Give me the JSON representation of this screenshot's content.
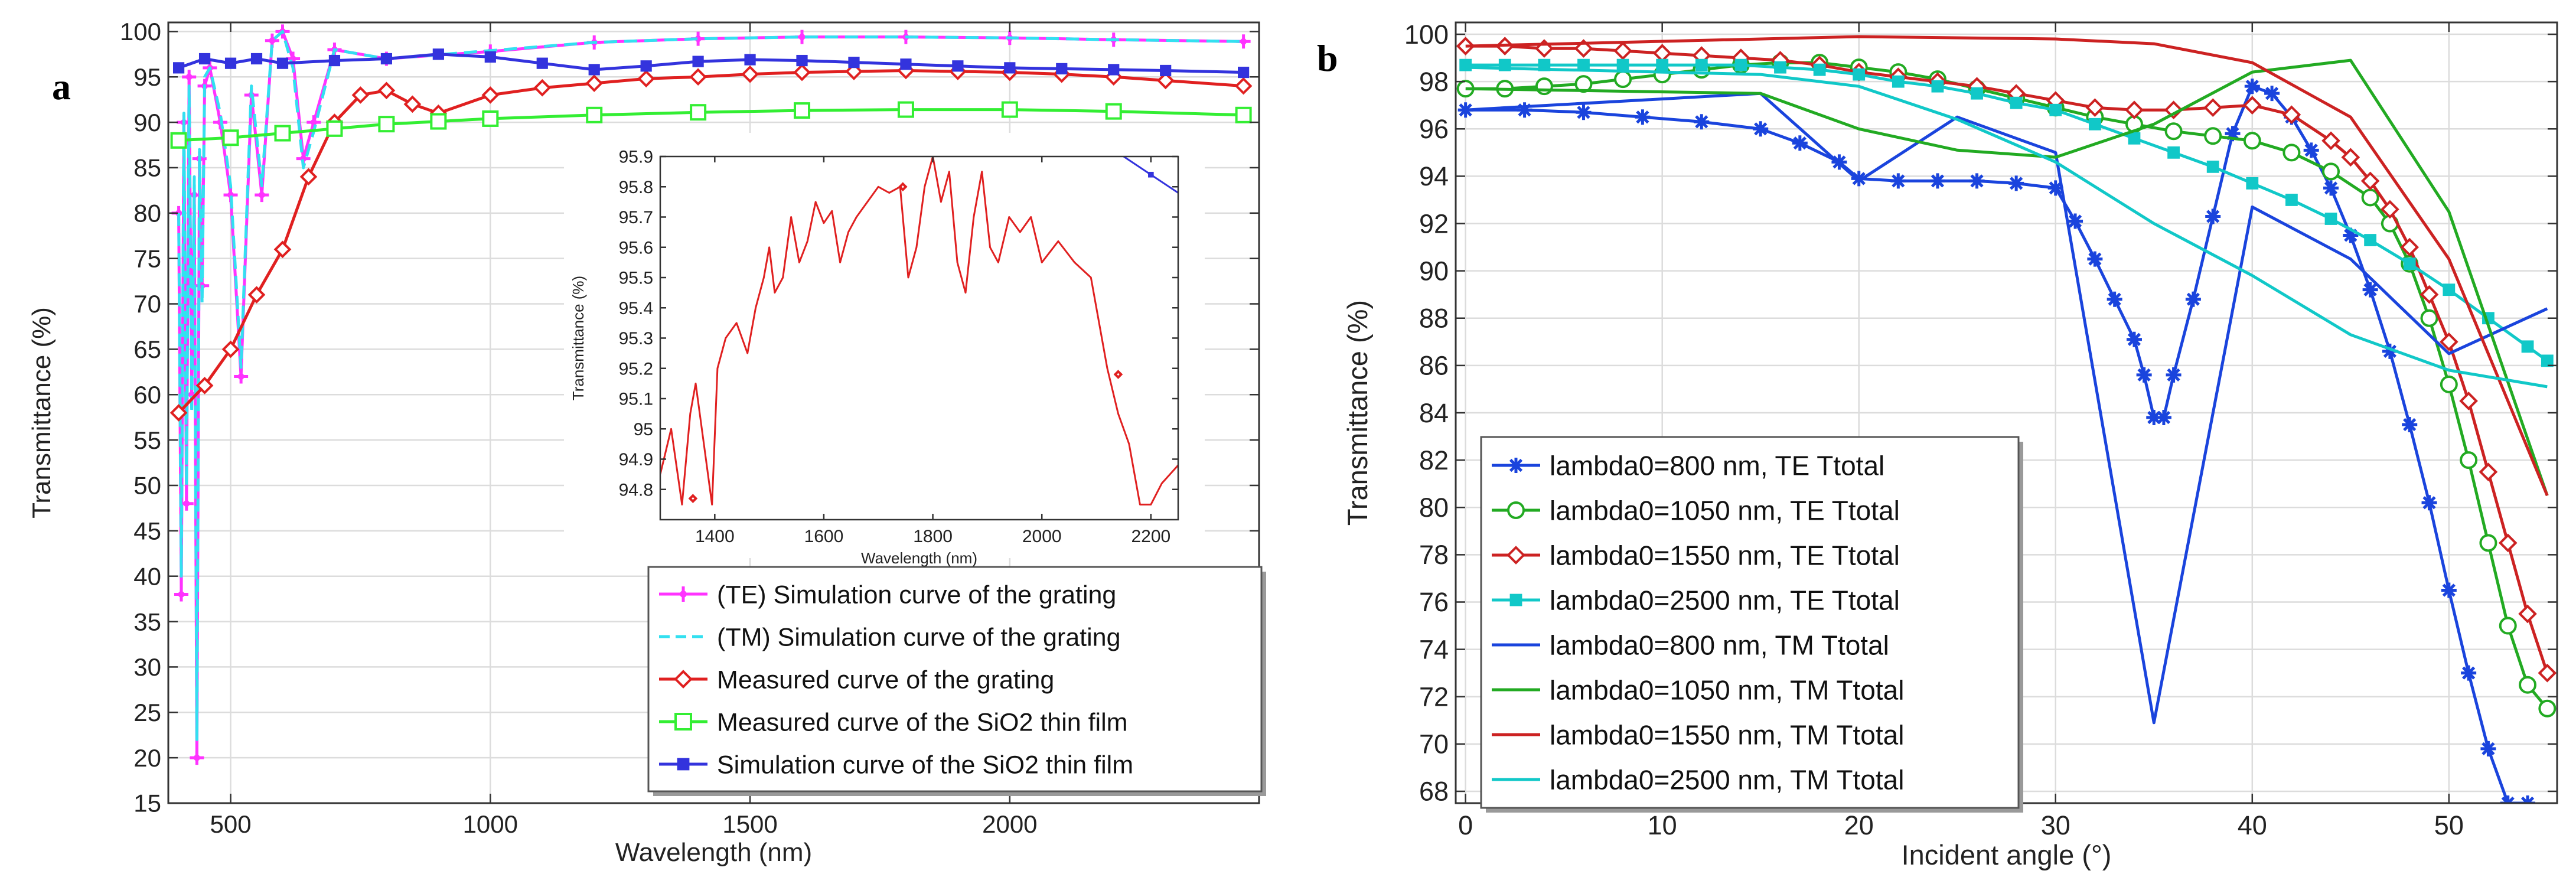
{
  "chart_data": [
    {
      "panel": "a",
      "type": "line",
      "xlabel": "Wavelength (nm)",
      "ylabel": "Transmittance (%)",
      "xlim": [
        380,
        2480
      ],
      "ylim": [
        15,
        101
      ],
      "xticks": [
        500,
        1000,
        1500,
        2000
      ],
      "yticks": [
        15,
        20,
        25,
        30,
        35,
        40,
        45,
        50,
        55,
        60,
        65,
        70,
        75,
        80,
        85,
        90,
        95,
        100
      ],
      "grid": true,
      "legend_position": "bottom-right",
      "series": [
        {
          "name": "(TE) Simulation curve of the grating",
          "color": "#ff33ff",
          "marker": "plus",
          "x": [
            400,
            405,
            410,
            415,
            420,
            425,
            430,
            435,
            440,
            445,
            450,
            460,
            480,
            500,
            520,
            540,
            560,
            580,
            600,
            620,
            640,
            660,
            700,
            800,
            1000,
            1200,
            1400,
            1600,
            1800,
            2000,
            2200,
            2450
          ],
          "y": [
            80,
            38,
            90,
            48,
            95,
            60,
            82,
            20,
            86,
            72,
            94,
            96,
            90,
            82,
            62,
            93,
            82,
            99,
            100,
            97,
            86,
            90,
            98,
            97,
            97.8,
            98.8,
            99.2,
            99.4,
            99.4,
            99.3,
            99.1,
            98.9
          ]
        },
        {
          "name": "(TM) Simulation curve of the grating",
          "color": "#33e0f0",
          "marker": "none",
          "x": [
            400,
            405,
            410,
            415,
            420,
            425,
            430,
            435,
            440,
            445,
            450,
            460,
            480,
            500,
            520,
            540,
            560,
            580,
            600,
            620,
            640,
            660,
            700,
            800,
            1000,
            1200,
            1400,
            1600,
            1800,
            2000,
            2200,
            2450
          ],
          "y": [
            80,
            40,
            91,
            50,
            94,
            58,
            84,
            22,
            87,
            70,
            95,
            96,
            91,
            83,
            63,
            94,
            83,
            99,
            100,
            96,
            85,
            89,
            98,
            97,
            97.9,
            98.8,
            99.2,
            99.4,
            99.4,
            99.3,
            99.1,
            98.9
          ]
        },
        {
          "name": "Measured curve of the grating",
          "color": "#e02020",
          "marker": "diamond",
          "x": [
            400,
            450,
            500,
            550,
            600,
            650,
            700,
            750,
            800,
            850,
            900,
            1000,
            1100,
            1200,
            1300,
            1400,
            1500,
            1600,
            1700,
            1800,
            1900,
            2000,
            2100,
            2200,
            2300,
            2450
          ],
          "y": [
            58,
            61,
            65,
            71,
            76,
            84,
            90,
            93,
            93.5,
            92,
            91,
            93,
            93.8,
            94.3,
            94.8,
            95,
            95.3,
            95.5,
            95.6,
            95.7,
            95.6,
            95.5,
            95.3,
            95,
            94.6,
            94
          ]
        },
        {
          "name": "Measured curve of the SiO2 thin film",
          "color": "#33ee33",
          "marker": "square",
          "x": [
            400,
            500,
            600,
            700,
            800,
            900,
            1000,
            1200,
            1400,
            1600,
            1800,
            2000,
            2200,
            2450
          ],
          "y": [
            88,
            88.3,
            88.8,
            89.3,
            89.8,
            90.1,
            90.4,
            90.8,
            91.1,
            91.3,
            91.4,
            91.4,
            91.2,
            90.8
          ]
        },
        {
          "name": "Simulation curve of the SiO2 thin film",
          "color": "#3333dd",
          "marker": "filled-square",
          "x": [
            400,
            450,
            500,
            550,
            600,
            700,
            800,
            900,
            1000,
            1100,
            1200,
            1300,
            1400,
            1500,
            1600,
            1700,
            1800,
            1900,
            2000,
            2100,
            2200,
            2300,
            2450
          ],
          "y": [
            96,
            97,
            96.5,
            97,
            96.5,
            96.8,
            97,
            97.5,
            97.2,
            96.5,
            95.8,
            96.2,
            96.7,
            96.9,
            96.8,
            96.6,
            96.4,
            96.2,
            96,
            95.9,
            95.8,
            95.7,
            95.5
          ]
        }
      ]
    },
    {
      "panel": "a-inset",
      "type": "line",
      "xlabel": "Wavelength (nm)",
      "ylabel": "Transmittance (%)",
      "xlim": [
        1300,
        2250
      ],
      "ylim": [
        94.7,
        95.9
      ],
      "xticks": [
        1400,
        1600,
        1800,
        2000,
        2200
      ],
      "yticks": [
        94.8,
        94.9,
        95,
        95.1,
        95.2,
        95.3,
        95.4,
        95.5,
        95.6,
        95.7,
        95.8,
        95.9
      ],
      "ytick_labels": [
        "94.8",
        "94.9",
        "95",
        "95.1",
        "95.2",
        "95.3",
        "95.4",
        "95.5",
        "95.6",
        "95.7",
        "95.8",
        "95.9"
      ],
      "series": [
        {
          "name": "Measured curve of the grating (zoom)",
          "color": "#e02020",
          "x": [
            1300,
            1320,
            1340,
            1355,
            1365,
            1380,
            1395,
            1405,
            1420,
            1440,
            1460,
            1475,
            1490,
            1500,
            1510,
            1525,
            1540,
            1555,
            1570,
            1585,
            1600,
            1615,
            1630,
            1645,
            1660,
            1680,
            1700,
            1720,
            1740,
            1755,
            1770,
            1785,
            1800,
            1815,
            1830,
            1845,
            1860,
            1875,
            1890,
            1905,
            1920,
            1940,
            1960,
            1980,
            2000,
            2030,
            2060,
            2090,
            2120,
            2140,
            2160,
            2180,
            2200,
            2220,
            2250
          ],
          "y": [
            94.85,
            95.0,
            94.75,
            95.05,
            95.15,
            94.95,
            94.75,
            95.2,
            95.3,
            95.35,
            95.25,
            95.4,
            95.5,
            95.6,
            95.45,
            95.5,
            95.7,
            95.55,
            95.62,
            95.75,
            95.68,
            95.72,
            95.55,
            95.65,
            95.7,
            95.75,
            95.8,
            95.78,
            95.8,
            95.5,
            95.6,
            95.8,
            95.9,
            95.75,
            95.85,
            95.55,
            95.45,
            95.7,
            95.85,
            95.6,
            95.55,
            95.7,
            95.65,
            95.7,
            95.55,
            95.62,
            95.55,
            95.5,
            95.2,
            95.05,
            94.95,
            94.75,
            94.75,
            94.82,
            94.88
          ]
        },
        {
          "name": "Simulation curve of the SiO2 thin film (zoom)",
          "color": "#3333dd",
          "x": [
            2150,
            2200,
            2250
          ],
          "y": [
            95.9,
            95.84,
            95.78
          ]
        }
      ]
    },
    {
      "panel": "b",
      "type": "line",
      "xlabel": "Incident angle (°)",
      "ylabel": "Transmittance (%)",
      "xlim": [
        -0.5,
        55.5
      ],
      "ylim": [
        67.5,
        100.5
      ],
      "xticks": [
        0,
        10,
        20,
        30,
        40,
        50
      ],
      "yticks": [
        68,
        70,
        72,
        74,
        76,
        78,
        80,
        82,
        84,
        86,
        88,
        90,
        92,
        94,
        96,
        98,
        100
      ],
      "grid": true,
      "legend_position": "bottom-left",
      "series": [
        {
          "name": "lambda0=800 nm, TE Ttotal",
          "color": "#1a44dd",
          "marker": "star",
          "x": [
            0,
            3,
            6,
            9,
            12,
            15,
            17,
            19,
            20,
            22,
            24,
            26,
            28,
            30,
            31,
            32,
            33,
            34,
            34.5,
            35,
            35.5,
            36,
            37,
            38,
            39,
            40,
            41,
            42,
            43,
            44,
            45,
            46,
            47,
            48,
            49,
            50,
            51,
            52,
            53,
            54
          ],
          "y": [
            96.8,
            96.8,
            96.7,
            96.5,
            96.3,
            96,
            95.4,
            94.6,
            93.9,
            93.8,
            93.8,
            93.8,
            93.7,
            93.5,
            92.1,
            90.5,
            88.8,
            87.1,
            85.6,
            83.8,
            83.8,
            85.6,
            88.8,
            92.3,
            95.8,
            97.8,
            97.5,
            96.5,
            95.1,
            93.5,
            91.5,
            89.2,
            86.6,
            83.5,
            80.2,
            76.5,
            73,
            69.8,
            67.5,
            67.5
          ]
        },
        {
          "name": "lambda0=1050 nm, TE Ttotal",
          "color": "#22aa22",
          "marker": "circle",
          "x": [
            0,
            2,
            4,
            6,
            8,
            10,
            12,
            14,
            16,
            18,
            20,
            22,
            24,
            26,
            28,
            30,
            32,
            34,
            36,
            38,
            40,
            42,
            44,
            46,
            47,
            48,
            49,
            50,
            51,
            52,
            53,
            54,
            55
          ],
          "y": [
            97.7,
            97.7,
            97.8,
            97.9,
            98.1,
            98.3,
            98.5,
            98.7,
            98.8,
            98.8,
            98.6,
            98.4,
            98.1,
            97.7,
            97.3,
            96.9,
            96.5,
            96.2,
            95.9,
            95.7,
            95.5,
            95,
            94.2,
            93.1,
            92,
            90.3,
            88,
            85.2,
            82,
            78.5,
            75,
            72.5,
            71.5
          ]
        },
        {
          "name": "lambda0=1550 nm, TE Ttotal",
          "color": "#cc2222",
          "marker": "diamond",
          "x": [
            0,
            2,
            4,
            6,
            8,
            10,
            12,
            14,
            16,
            18,
            20,
            22,
            24,
            26,
            28,
            30,
            32,
            34,
            36,
            38,
            40,
            42,
            44,
            45,
            46,
            47,
            48,
            49,
            50,
            51,
            52,
            53,
            54,
            55
          ],
          "y": [
            99.5,
            99.5,
            99.4,
            99.4,
            99.3,
            99.2,
            99.1,
            99,
            98.9,
            98.7,
            98.4,
            98.2,
            98,
            97.8,
            97.5,
            97.2,
            96.9,
            96.8,
            96.8,
            96.9,
            97,
            96.6,
            95.5,
            94.8,
            93.8,
            92.6,
            91,
            89,
            87,
            84.5,
            81.5,
            78.5,
            75.5,
            73
          ]
        },
        {
          "name": "lambda0=2500 nm, TE Ttotal",
          "color": "#11c8c8",
          "marker": "filled-square",
          "x": [
            0,
            2,
            4,
            6,
            8,
            10,
            12,
            14,
            16,
            18,
            20,
            22,
            24,
            26,
            28,
            30,
            32,
            34,
            36,
            38,
            40,
            42,
            44,
            46,
            48,
            50,
            52,
            54,
            55
          ],
          "y": [
            98.7,
            98.7,
            98.7,
            98.7,
            98.7,
            98.7,
            98.7,
            98.7,
            98.6,
            98.5,
            98.3,
            98,
            97.8,
            97.5,
            97.1,
            96.8,
            96.2,
            95.6,
            95,
            94.4,
            93.7,
            93,
            92.2,
            91.3,
            90.3,
            89.2,
            88,
            86.8,
            86.2
          ]
        },
        {
          "name": "lambda0=800 nm, TM Ttotal",
          "color": "#1a44dd",
          "marker": "none",
          "x": [
            0,
            15,
            20,
            25,
            30,
            35,
            40,
            45,
            50,
            55
          ],
          "y": [
            96.8,
            97.5,
            93.8,
            96.5,
            95,
            70.9,
            92.7,
            90.5,
            86.5,
            88.4
          ]
        },
        {
          "name": "lambda0=1050 nm, TM Ttotal",
          "color": "#22aa22",
          "marker": "none",
          "x": [
            0,
            15,
            20,
            25,
            30,
            35,
            40,
            45,
            50,
            55
          ],
          "y": [
            97.7,
            97.5,
            96,
            95.1,
            94.8,
            96.2,
            98.4,
            98.9,
            92.5,
            80.5
          ]
        },
        {
          "name": "lambda0=1550 nm, TM Ttotal",
          "color": "#cc2222",
          "marker": "none",
          "x": [
            0,
            10,
            20,
            30,
            35,
            40,
            45,
            50,
            55
          ],
          "y": [
            99.5,
            99.7,
            99.9,
            99.8,
            99.6,
            98.8,
            96.5,
            90.5,
            80.5
          ]
        },
        {
          "name": "lambda0=2500 nm, TM Ttotal",
          "color": "#11c8c8",
          "marker": "none",
          "x": [
            0,
            10,
            15,
            20,
            25,
            30,
            35,
            40,
            45,
            50,
            55
          ],
          "y": [
            98.6,
            98.4,
            98.3,
            97.8,
            96.4,
            94.6,
            92,
            89.8,
            87.3,
            85.8,
            85.1
          ]
        }
      ]
    }
  ],
  "labels": {
    "panel_a": "a",
    "panel_b": "b"
  }
}
